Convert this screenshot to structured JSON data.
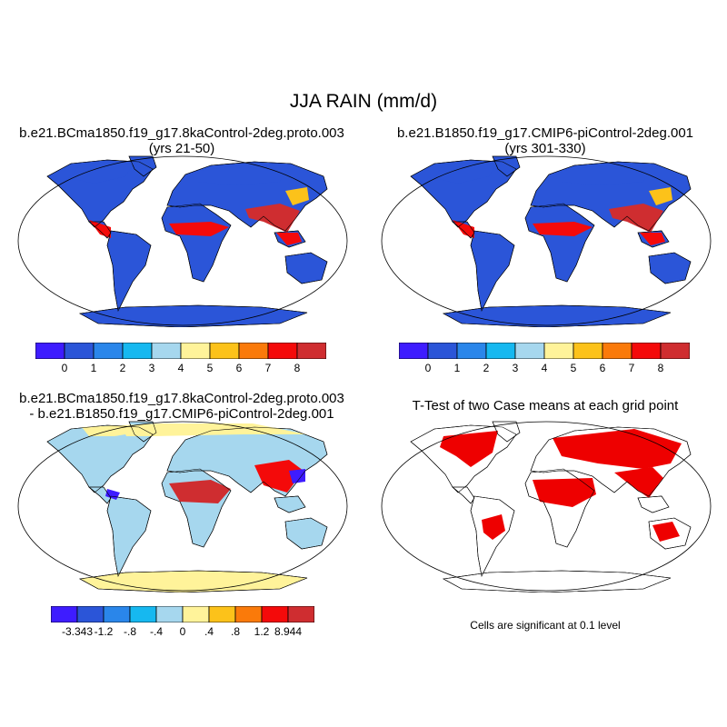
{
  "figure": {
    "main_title": "JJA RAIN (mm/d)"
  },
  "panels": {
    "case_mean": {
      "title_line1": "b.e21.BCma1850.f19_g17.8kaControl-2deg.proto.003",
      "title_line2": "(yrs 21-50)"
    },
    "control_mean": {
      "title_line1": "b.e21.B1850.f19_g17.CMIP6-piControl-2deg.001",
      "title_line2": "(yrs 301-330)"
    },
    "difference": {
      "title_line1": "b.e21.BCma1850.f19_g17.8kaControl-2deg.proto.003",
      "title_line2": "- b.e21.B1850.f19_g17.CMIP6-piControl-2deg.001"
    },
    "ttest": {
      "title": "T-Test of two Case means at each grid point",
      "note": "Cells are significant at 0.1 level"
    }
  },
  "colorbars": {
    "mean": {
      "colors": [
        "#3e1cff",
        "#2b55d8",
        "#2a86ea",
        "#16b8f0",
        "#a6d7ee",
        "#fff39a",
        "#fcc21a",
        "#fa7a0a",
        "#f40a0a",
        "#cf2d30"
      ],
      "labels": [
        "0",
        "1",
        "2",
        "3",
        "4",
        "5",
        "6",
        "7",
        "8"
      ]
    },
    "diff": {
      "colors": [
        "#3e1cff",
        "#2b55d8",
        "#2a86ea",
        "#16b8f0",
        "#a6d7ee",
        "#fff39a",
        "#fcc21a",
        "#fa7a0a",
        "#f40a0a",
        "#cf2d30"
      ],
      "labels": [
        "-3.343",
        "-1.2",
        "-.8",
        "-.4",
        "0",
        ".4",
        ".8",
        "1.2",
        "8.944"
      ]
    }
  },
  "significance_color": "#ee0000",
  "ocean_color": "#ffffff",
  "land_outline_color": "#000000"
}
